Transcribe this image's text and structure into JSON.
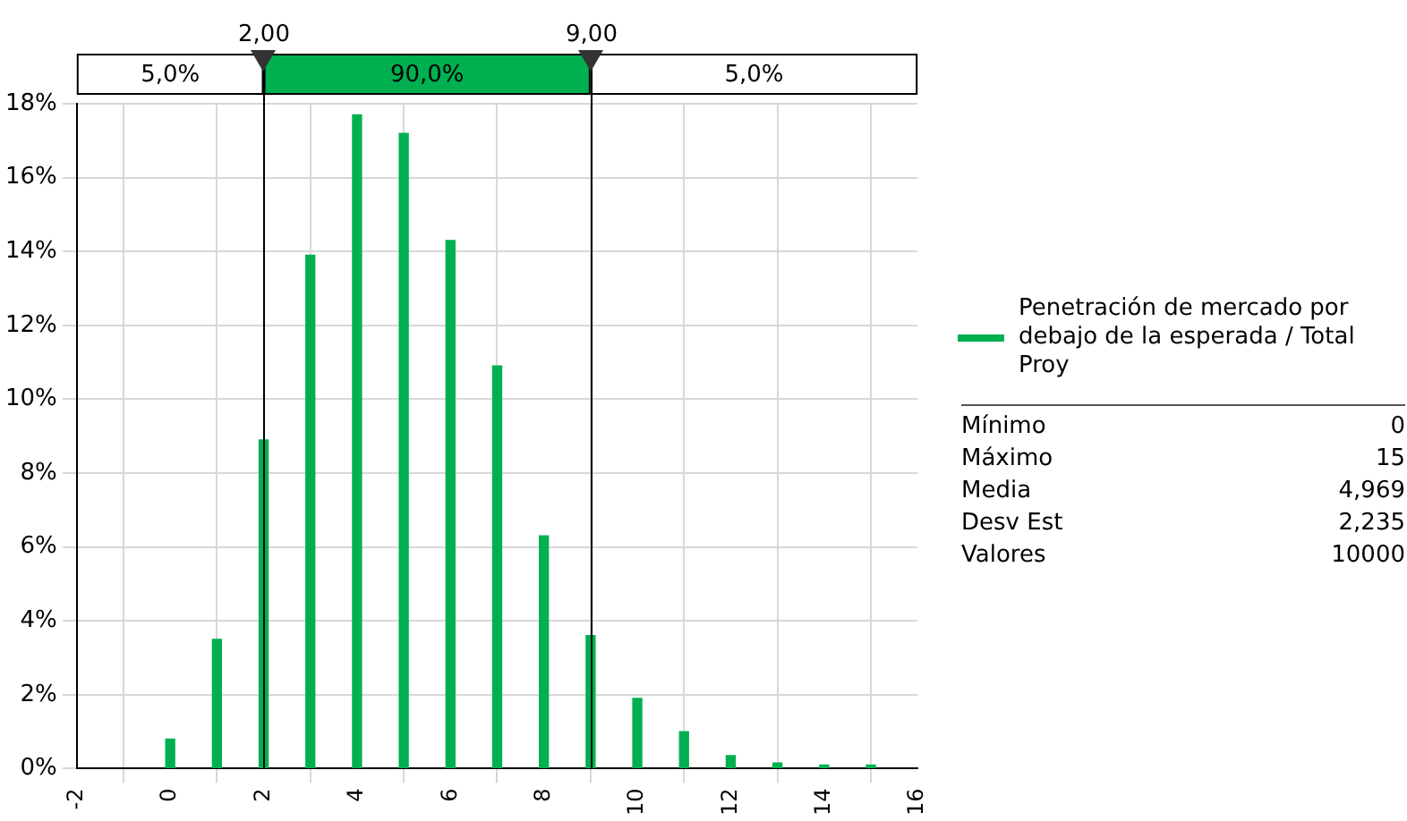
{
  "chart_data": {
    "type": "bar",
    "x": [
      0,
      1,
      2,
      3,
      4,
      5,
      6,
      7,
      8,
      9,
      10,
      11,
      12,
      13,
      14,
      15
    ],
    "series": [
      {
        "name": "Penetración de mercado por debajo de la esperada / Total Proy",
        "color": "#00b050",
        "values": [
          0.8,
          3.5,
          8.9,
          13.9,
          17.7,
          17.2,
          14.3,
          10.9,
          6.3,
          3.6,
          1.9,
          1.0,
          0.35,
          0.15,
          0.1,
          0.1
        ]
      }
    ],
    "xlim": [
      -2,
      16
    ],
    "xticks": [
      -2,
      0,
      2,
      4,
      6,
      8,
      10,
      12,
      14,
      16
    ],
    "ylim": [
      0,
      18
    ],
    "yticks": [
      {
        "value": 0,
        "label": "0%"
      },
      {
        "value": 2,
        "label": "2%"
      },
      {
        "value": 4,
        "label": "4%"
      },
      {
        "value": 6,
        "label": "6%"
      },
      {
        "value": 8,
        "label": "8%"
      },
      {
        "value": 10,
        "label": "10%"
      },
      {
        "value": 12,
        "label": "12%"
      },
      {
        "value": 14,
        "label": "14%"
      },
      {
        "value": 16,
        "label": "16%"
      },
      {
        "value": 18,
        "label": "18%"
      }
    ],
    "ref_lines": [
      {
        "axis": "x",
        "value": 2,
        "label": "2,00",
        "color": "#000000"
      },
      {
        "axis": "x",
        "value": 9,
        "label": "9,00",
        "color": "#000000"
      }
    ],
    "annotations": [
      "5,0%",
      "90,0%",
      "5,0%",
      "Mínimo",
      "0",
      "Máximo",
      "15",
      "Media",
      "4,969",
      "Desv Est",
      "2,235",
      "Valores",
      "10000"
    ],
    "grid": true,
    "legend": "right"
  }
}
